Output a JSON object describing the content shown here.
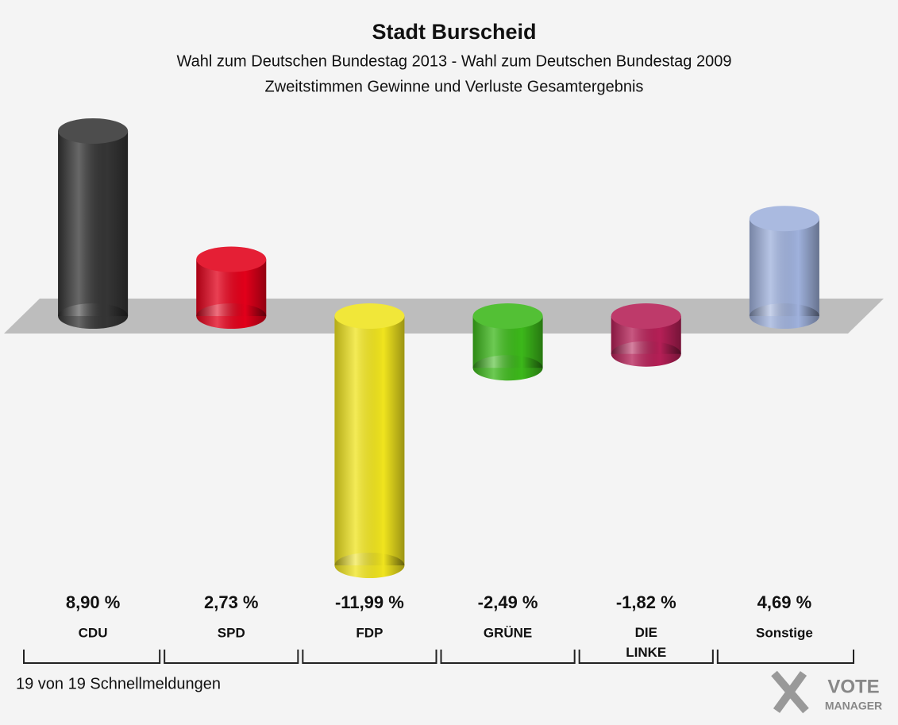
{
  "chart_data": {
    "type": "bar",
    "title": "Stadt Burscheid",
    "subtitle": [
      "Wahl zum Deutschen Bundestag 2013 - Wahl zum Deutschen Bundestag 2009",
      "Zweitstimmen Gewinne und Verluste Gesamtergebnis"
    ],
    "categories": [
      "CDU",
      "SPD",
      "FDP",
      "GRÜNE",
      "DIE LINKE",
      "Sonstige"
    ],
    "values": [
      8.9,
      2.73,
      -11.99,
      -2.49,
      -1.82,
      4.69
    ],
    "value_labels": [
      "8,90 %",
      "2,73 %",
      "-11,99 %",
      "-2,49 %",
      "-1,82 %",
      "4,69 %"
    ],
    "colors": [
      "#353535",
      "#e2001a",
      "#f0e41e",
      "#3cb81a",
      "#b51f56",
      "#9fb1dc"
    ],
    "footnote": "19 von 19 Schnellmeldungen",
    "logo": [
      "VOTE",
      "MANAGER"
    ]
  }
}
